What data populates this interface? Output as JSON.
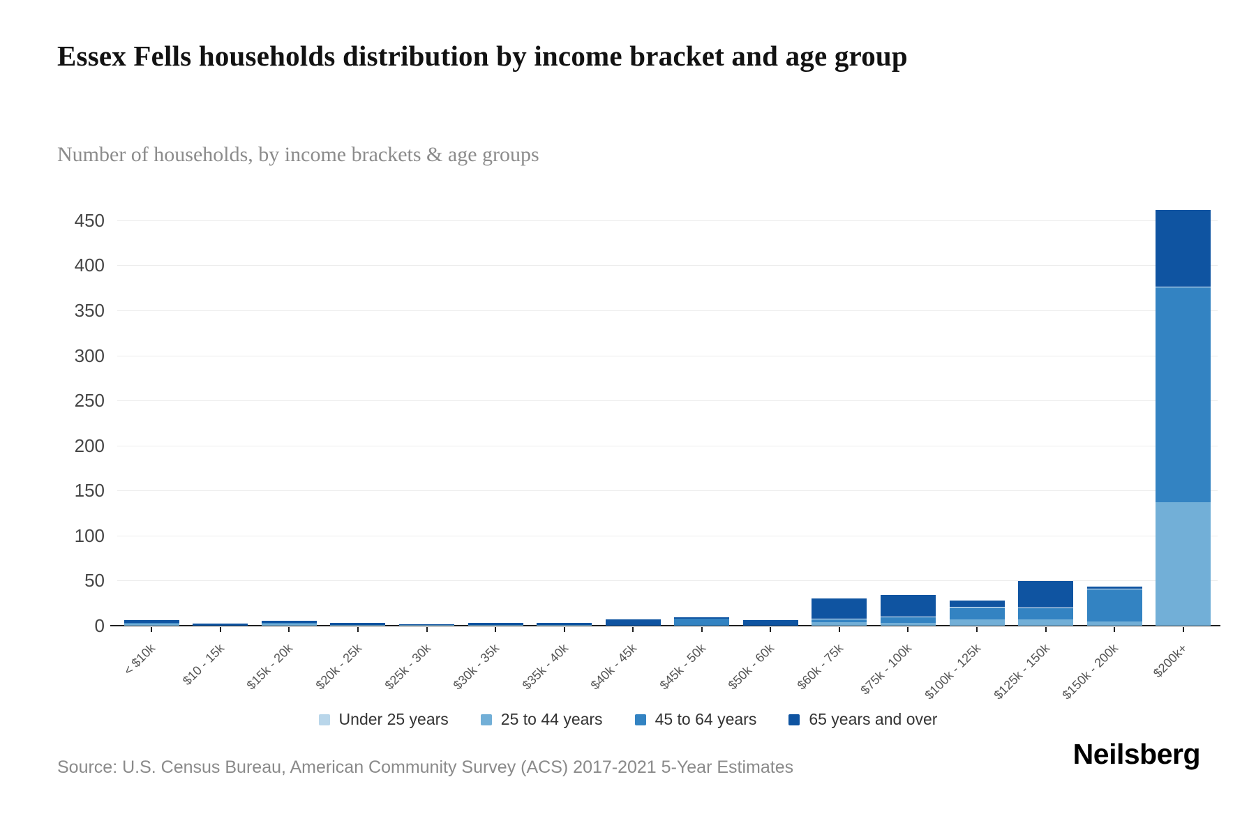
{
  "header": {
    "title": "Essex Fells households distribution by income bracket and age group",
    "subtitle": "Number of households, by income brackets & age groups"
  },
  "chart_data": {
    "type": "bar",
    "stacked": true,
    "title": "Essex Fells households distribution by income bracket and age group",
    "subtitle": "Number of households, by income brackets & age groups",
    "xlabel": "",
    "ylabel": "",
    "ylim": [
      0,
      480
    ],
    "yticks": [
      0,
      50,
      100,
      150,
      200,
      250,
      300,
      350,
      400,
      450
    ],
    "grid": "horizontal",
    "legend_position": "bottom",
    "categories": [
      "< $10k",
      "$10 - 15k",
      "$15k - 20k",
      "$20k - 25k",
      "$25k - 30k",
      "$30k - 35k",
      "$35k - 40k",
      "$40k - 45k",
      "$45k - 50k",
      "$50k - 60k",
      "$60k - 75k",
      "$75k - 100k",
      "$100k - 125k",
      "$125k - 150k",
      "$150k - 200k",
      "$200k+"
    ],
    "series": [
      {
        "name": "Under 25 years",
        "color": "#b9d6ea",
        "values": [
          0,
          0,
          0,
          0,
          0,
          0,
          0,
          0,
          0,
          0,
          0,
          0,
          0,
          0,
          0,
          0
        ]
      },
      {
        "name": "25 to 44 years",
        "color": "#72afd7",
        "values": [
          2,
          0,
          2,
          1,
          1,
          1,
          1,
          0,
          0,
          0,
          4,
          3,
          7,
          7,
          5,
          137
        ]
      },
      {
        "name": "45 to 64 years",
        "color": "#3383c2",
        "values": [
          1,
          0,
          1,
          0,
          0,
          0,
          0,
          0,
          8,
          0,
          4,
          7,
          14,
          13,
          36,
          239
        ]
      },
      {
        "name": "65 years and over",
        "color": "#0f54a1",
        "values": [
          4,
          2,
          3,
          3,
          1,
          3,
          3,
          7,
          1,
          6,
          23,
          25,
          8,
          30,
          3,
          86
        ]
      }
    ]
  },
  "footer": {
    "source": "Source: U.S. Census Bureau, American Community Survey (ACS) 2017-2021 5-Year Estimates",
    "brand": "Neilsberg"
  }
}
